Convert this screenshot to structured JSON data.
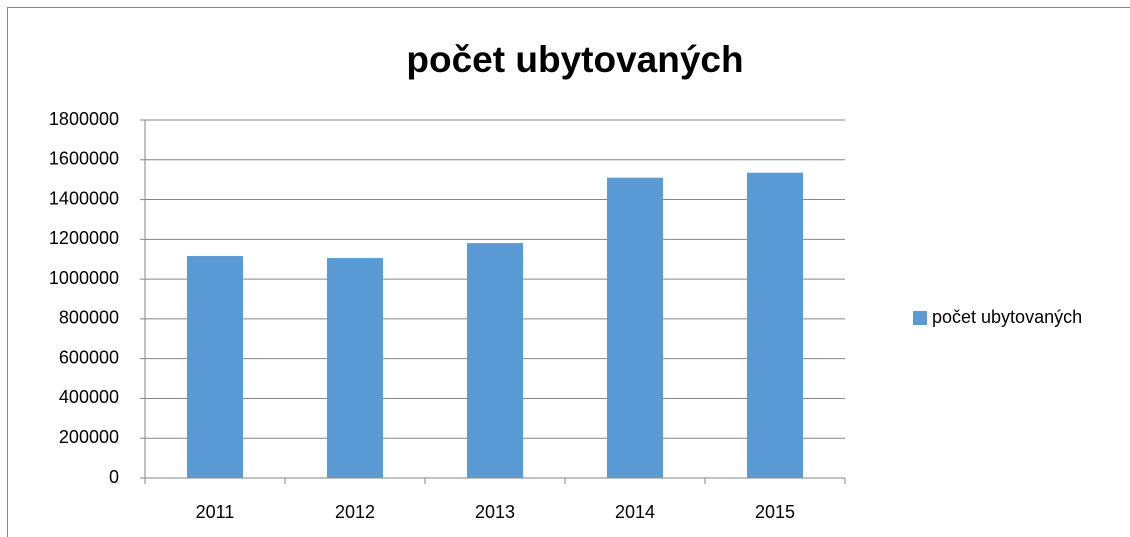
{
  "chart_data": {
    "type": "bar",
    "title": "počet ubytovaných",
    "categories": [
      "2011",
      "2012",
      "2013",
      "2014",
      "2015"
    ],
    "series": [
      {
        "name": "počet ubytovaných",
        "color": "#5b9bd5",
        "values": [
          1116000,
          1106000,
          1181000,
          1510000,
          1535000
        ]
      }
    ],
    "ylim": [
      0,
      1800000
    ],
    "yticks": [
      0,
      200000,
      400000,
      600000,
      800000,
      1000000,
      1200000,
      1400000,
      1600000,
      1800000
    ],
    "grid": true,
    "legend": "right"
  }
}
